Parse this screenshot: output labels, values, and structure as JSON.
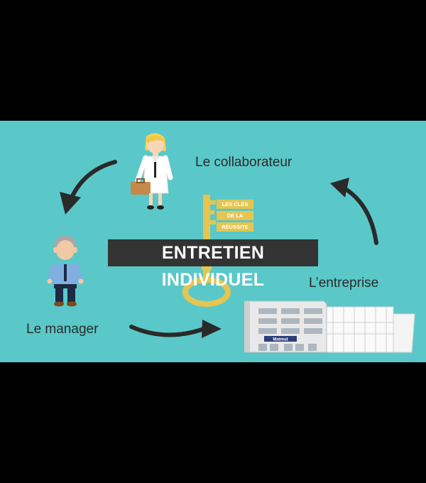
{
  "diagram": {
    "banner": "ENTRETIEN INDIVIDUEL",
    "key_tags": [
      "LES CLÉS",
      "DE LA",
      "RÉUSSITE"
    ],
    "labels": {
      "collaborateur": "Le collaborateur",
      "entreprise": "L’entreprise",
      "manager": "Le manager"
    },
    "building_sign": "Matmut"
  },
  "colors": {
    "background": "#5ac8c8",
    "letterbox": "#000000",
    "banner": "#333333",
    "key": "#e6c550",
    "arrow": "#2a2a2a"
  },
  "icons": [
    "woman-collaborateur-icon",
    "man-manager-icon",
    "golden-key-icon",
    "office-building-icon",
    "cycle-arrow-icon"
  ]
}
